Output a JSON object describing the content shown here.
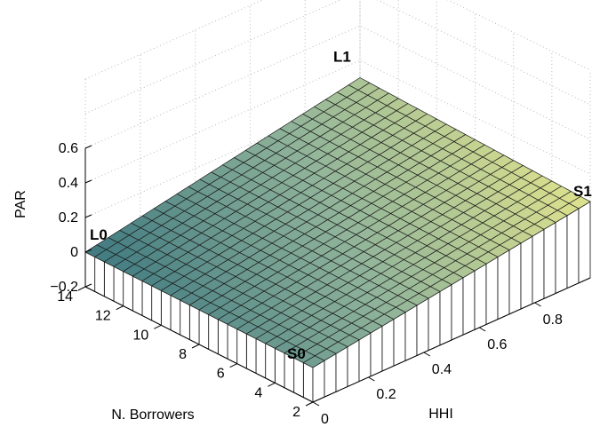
{
  "chart_data": {
    "type": "surface3d",
    "xlabel": "HHI",
    "ylabel": "N. Borrowers",
    "zlabel": "PAR",
    "xlim": [
      0,
      1
    ],
    "ylim": [
      2,
      14
    ],
    "zlim": [
      -0.2,
      0.6
    ],
    "x_ticks": [
      "0",
      "0.2",
      "0.4",
      "0.6",
      "0.8"
    ],
    "x_tick_values": [
      0,
      0.2,
      0.4,
      0.6,
      0.8
    ],
    "y_ticks": [
      "2",
      "4",
      "6",
      "8",
      "10",
      "12",
      "14"
    ],
    "y_tick_values": [
      2,
      4,
      6,
      8,
      10,
      12,
      14
    ],
    "z_ticks": [
      "−0.2",
      "0",
      "0.2",
      "0.4",
      "0.6"
    ],
    "z_tick_values": [
      -0.2,
      0,
      0.2,
      0.4,
      0.6
    ],
    "grid": true,
    "colormap": [
      "#2a6a7a",
      "#8fb39a",
      "#f2ee8a"
    ],
    "surface": {
      "x_range": [
        0,
        1
      ],
      "y_range": [
        2,
        14
      ],
      "grid_n": 24,
      "corners": [
        {
          "label": "S0",
          "x": 0,
          "y": 2,
          "z": 0.0
        },
        {
          "label": "S1",
          "x": 1,
          "y": 2,
          "z": 0.24
        },
        {
          "label": "L0",
          "x": 0,
          "y": 14,
          "z": 0.0
        },
        {
          "label": "L1",
          "x": 1,
          "y": 14,
          "z": 0.3
        }
      ]
    }
  }
}
